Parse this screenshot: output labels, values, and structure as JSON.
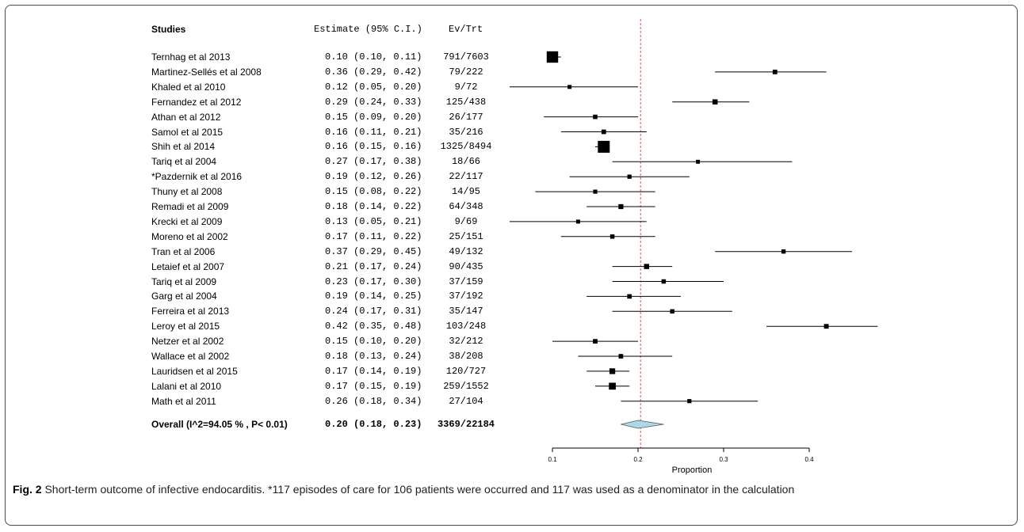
{
  "chart_data": {
    "type": "forest",
    "header": {
      "studies": "Studies",
      "estimate": "Estimate (95% C.I.)",
      "evtrt": "Ev/Trt"
    },
    "xlabel": "Proportion",
    "xticks": [
      0.1,
      0.2,
      0.3,
      0.4
    ],
    "xtick_labels": [
      "0.1",
      "0.2",
      "0.3",
      "0.4"
    ],
    "xlim": [
      0.1,
      0.4
    ],
    "reference_line": 0.203,
    "studies": [
      {
        "label": "Ternhag et al  2013",
        "est": 0.1,
        "lo": 0.1,
        "hi": 0.11,
        "text": "0.10 (0.10, 0.11)",
        "evtrt": "791/7603",
        "weight": 7603
      },
      {
        "label": "Martinez-Sellés et al  2008",
        "est": 0.36,
        "lo": 0.29,
        "hi": 0.42,
        "text": "0.36 (0.29, 0.42)",
        "evtrt": "79/222",
        "weight": 222
      },
      {
        "label": "Khaled et al 2010",
        "est": 0.12,
        "lo": 0.05,
        "hi": 0.2,
        "text": "0.12 (0.05, 0.20)",
        "evtrt": "9/72",
        "weight": 72
      },
      {
        "label": "Fernandez et al 2012",
        "est": 0.29,
        "lo": 0.24,
        "hi": 0.33,
        "text": "0.29 (0.24, 0.33)",
        "evtrt": "125/438",
        "weight": 438
      },
      {
        "label": "Athan et al  2012",
        "est": 0.15,
        "lo": 0.09,
        "hi": 0.2,
        "text": "0.15 (0.09, 0.20)",
        "evtrt": "26/177",
        "weight": 177
      },
      {
        "label": "Samol et al  2015",
        "est": 0.16,
        "lo": 0.11,
        "hi": 0.21,
        "text": "0.16 (0.11, 0.21)",
        "evtrt": "35/216",
        "weight": 216
      },
      {
        "label": "Shih et al  2014",
        "est": 0.16,
        "lo": 0.15,
        "hi": 0.16,
        "text": "0.16 (0.15, 0.16)",
        "evtrt": "1325/8494",
        "weight": 8494
      },
      {
        "label": "Tariq et al 2004",
        "est": 0.27,
        "lo": 0.17,
        "hi": 0.38,
        "text": "0.27 (0.17, 0.38)",
        "evtrt": "18/66",
        "weight": 66
      },
      {
        "label": "*Pazdernik et al 2016",
        "est": 0.19,
        "lo": 0.12,
        "hi": 0.26,
        "text": "0.19 (0.12, 0.26)",
        "evtrt": "22/117",
        "weight": 117
      },
      {
        "label": "Thuny et al 2008",
        "est": 0.15,
        "lo": 0.08,
        "hi": 0.22,
        "text": "0.15 (0.08, 0.22)",
        "evtrt": "14/95",
        "weight": 95
      },
      {
        "label": "Remadi et al 2009",
        "est": 0.18,
        "lo": 0.14,
        "hi": 0.22,
        "text": "0.18 (0.14, 0.22)",
        "evtrt": "64/348",
        "weight": 348
      },
      {
        "label": "Krecki et al 2009",
        "est": 0.13,
        "lo": 0.05,
        "hi": 0.21,
        "text": "0.13 (0.05, 0.21)",
        "evtrt": "9/69",
        "weight": 69
      },
      {
        "label": "Moreno et al 2002",
        "est": 0.17,
        "lo": 0.11,
        "hi": 0.22,
        "text": "0.17 (0.11, 0.22)",
        "evtrt": "25/151",
        "weight": 151
      },
      {
        "label": "Tran et al 2006",
        "est": 0.37,
        "lo": 0.29,
        "hi": 0.45,
        "text": "0.37 (0.29, 0.45)",
        "evtrt": "49/132",
        "weight": 132
      },
      {
        "label": "Letaief et al 2007",
        "est": 0.21,
        "lo": 0.17,
        "hi": 0.24,
        "text": "0.21 (0.17, 0.24)",
        "evtrt": "90/435",
        "weight": 435
      },
      {
        "label": "Tariq et al 2009",
        "est": 0.23,
        "lo": 0.17,
        "hi": 0.3,
        "text": "0.23 (0.17, 0.30)",
        "evtrt": "37/159",
        "weight": 159
      },
      {
        "label": "Garg et al  2004",
        "est": 0.19,
        "lo": 0.14,
        "hi": 0.25,
        "text": "0.19 (0.14, 0.25)",
        "evtrt": "37/192",
        "weight": 192
      },
      {
        "label": "Ferreira et al  2013",
        "est": 0.24,
        "lo": 0.17,
        "hi": 0.31,
        "text": "0.24 (0.17, 0.31)",
        "evtrt": "35/147",
        "weight": 147
      },
      {
        "label": "Leroy et al  2015",
        "est": 0.42,
        "lo": 0.35,
        "hi": 0.48,
        "text": "0.42 (0.35, 0.48)",
        "evtrt": "103/248",
        "weight": 248
      },
      {
        "label": "Netzer et al 2002",
        "est": 0.15,
        "lo": 0.1,
        "hi": 0.2,
        "text": "0.15 (0.10, 0.20)",
        "evtrt": "32/212",
        "weight": 212
      },
      {
        "label": "Wallace et al  2002",
        "est": 0.18,
        "lo": 0.13,
        "hi": 0.24,
        "text": "0.18 (0.13, 0.24)",
        "evtrt": "38/208",
        "weight": 208
      },
      {
        "label": "Lauridsen et al  2015",
        "est": 0.17,
        "lo": 0.14,
        "hi": 0.19,
        "text": "0.17 (0.14, 0.19)",
        "evtrt": "120/727",
        "weight": 727
      },
      {
        "label": "Lalani et al  2010",
        "est": 0.17,
        "lo": 0.15,
        "hi": 0.19,
        "text": "0.17 (0.15, 0.19)",
        "evtrt": "259/1552",
        "weight": 1552
      },
      {
        "label": "Math et al 2011",
        "est": 0.26,
        "lo": 0.18,
        "hi": 0.34,
        "text": "0.26 (0.18, 0.34)",
        "evtrt": "27/104",
        "weight": 104
      }
    ],
    "overall": {
      "label": "Overall (I^2=94.05 % , P< 0.01)",
      "est": 0.2,
      "lo": 0.18,
      "hi": 0.23,
      "text": "0.20 (0.18, 0.23)",
      "evtrt": "3369/22184",
      "color": "#add8e6"
    },
    "colors": {
      "reference_line": "#e05050",
      "marker": "#000000"
    }
  },
  "caption": {
    "fig": "Fig. 2",
    "text": " Short-term outcome of infective endocarditis. *117 episodes of care for 106 patients were occurred and 117 was used as a denominator in the calculation"
  }
}
